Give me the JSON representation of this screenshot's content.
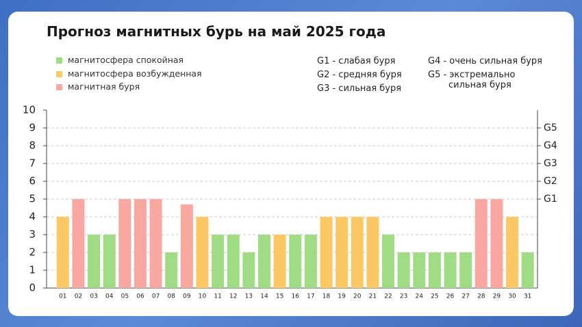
{
  "chart_data": {
    "type": "bar",
    "title": "Прогноз магнитных бурь на май 2025 года",
    "categories": [
      "01",
      "02",
      "03",
      "04",
      "05",
      "06",
      "07",
      "08",
      "09",
      "10",
      "11",
      "12",
      "13",
      "14",
      "15",
      "16",
      "17",
      "18",
      "19",
      "20",
      "21",
      "22",
      "23",
      "24",
      "25",
      "26",
      "27",
      "28",
      "29",
      "30",
      "31"
    ],
    "series": [
      {
        "name": "магнитосфера спокойная",
        "color": "#a0dc84",
        "values": [
          null,
          null,
          3,
          3,
          null,
          null,
          null,
          2,
          null,
          null,
          3,
          3,
          2,
          3,
          null,
          3,
          3,
          null,
          null,
          null,
          null,
          3,
          2,
          2,
          2,
          2,
          2,
          null,
          null,
          null,
          2
        ]
      },
      {
        "name": "магнитосфера возбужденная",
        "color": "#fcc863",
        "values": [
          4,
          null,
          null,
          null,
          null,
          null,
          null,
          null,
          null,
          4,
          null,
          null,
          null,
          null,
          3,
          null,
          null,
          4,
          4,
          4,
          4,
          null,
          null,
          null,
          null,
          null,
          null,
          null,
          null,
          4,
          null
        ]
      },
      {
        "name": "магнитная буря",
        "color": "#f8a7a1",
        "values": [
          null,
          5,
          null,
          null,
          5,
          5,
          5,
          null,
          4.7,
          null,
          null,
          null,
          null,
          null,
          null,
          null,
          null,
          null,
          null,
          null,
          null,
          null,
          null,
          null,
          null,
          null,
          null,
          5,
          5,
          null,
          null
        ]
      }
    ],
    "ylim": [
      0,
      10
    ],
    "yticks": [
      0,
      1,
      2,
      3,
      4,
      5,
      6,
      7,
      8,
      9,
      10
    ],
    "y2lim": [
      0,
      10
    ],
    "y2ticks": [
      {
        "value": 5,
        "label": "G1"
      },
      {
        "value": 6,
        "label": "G2"
      },
      {
        "value": 7,
        "label": "G3"
      },
      {
        "value": 8,
        "label": "G4"
      },
      {
        "value": 9,
        "label": "G5"
      }
    ],
    "annotations": [
      "G1 - слабая буря",
      "G2 - средняя буря",
      "G3 - сильная буря",
      "G4 - очень сильная буря",
      "G5 - экстремально сильная буря"
    ],
    "grid": true
  }
}
